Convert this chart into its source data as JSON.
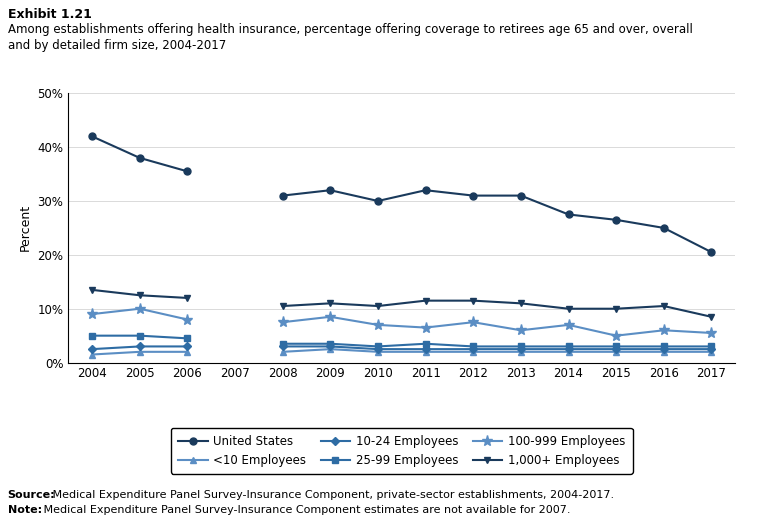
{
  "title_line1": "Exhibit 1.21",
  "title_line2": "Among establishments offering health insurance, percentage offering coverage to retirees age 65 and over, overall",
  "title_line3": "and by detailed firm size, 2004-2017",
  "ylabel": "Percent",
  "source_bold": "Source:",
  "source_rest": " Medical Expenditure Panel Survey-Insurance Component, private-sector establishments, 2004-2017.",
  "note_bold": "Note:",
  "note_rest": " Medical Expenditure Panel Survey-Insurance Component estimates are not available for 2007.",
  "years": [
    2004,
    2005,
    2006,
    2007,
    2008,
    2009,
    2010,
    2011,
    2012,
    2013,
    2014,
    2015,
    2016,
    2017
  ],
  "series": [
    {
      "name": "United States",
      "values": [
        42,
        38,
        35.5,
        null,
        31,
        32,
        30,
        32,
        31,
        31,
        27.5,
        26.5,
        25,
        20.5
      ],
      "color": "#1a3a5c",
      "marker": "o",
      "markersize": 5,
      "linewidth": 1.5
    },
    {
      "name": "<10 Employees",
      "values": [
        1.5,
        2,
        2,
        null,
        2,
        2.5,
        2,
        2,
        2,
        2,
        2,
        2,
        2,
        2
      ],
      "color": "#5b8ec4",
      "marker": "^",
      "markersize": 5,
      "linewidth": 1.5
    },
    {
      "name": "10-24 Employees",
      "values": [
        2.5,
        3,
        3,
        null,
        3,
        3,
        2.5,
        2.5,
        2.5,
        2.5,
        2.5,
        2.5,
        2.5,
        2.5
      ],
      "color": "#2e6ca4",
      "marker": "D",
      "markersize": 4,
      "linewidth": 1.5
    },
    {
      "name": "25-99 Employees",
      "values": [
        5,
        5,
        4.5,
        null,
        3.5,
        3.5,
        3,
        3.5,
        3,
        3,
        3,
        3,
        3,
        3
      ],
      "color": "#2e6ca4",
      "marker": "s",
      "markersize": 5,
      "linewidth": 1.5
    },
    {
      "name": "100-999 Employees",
      "values": [
        9,
        10,
        8,
        null,
        7.5,
        8.5,
        7,
        6.5,
        7.5,
        6,
        7,
        5,
        6,
        5.5
      ],
      "color": "#5b8ec4",
      "marker": "*",
      "markersize": 8,
      "linewidth": 1.5
    },
    {
      "name": "1,000+ Employees",
      "values": [
        13.5,
        12.5,
        12,
        null,
        10.5,
        11,
        10.5,
        11.5,
        11.5,
        11,
        10,
        10,
        10.5,
        8.5
      ],
      "color": "#1a3a5c",
      "marker": "v",
      "markersize": 5,
      "linewidth": 1.5
    }
  ],
  "ylim": [
    0,
    50
  ],
  "yticks": [
    0,
    10,
    20,
    30,
    40,
    50
  ],
  "ytick_labels": [
    "0%",
    "10%",
    "20%",
    "30%",
    "40%",
    "50%"
  ]
}
